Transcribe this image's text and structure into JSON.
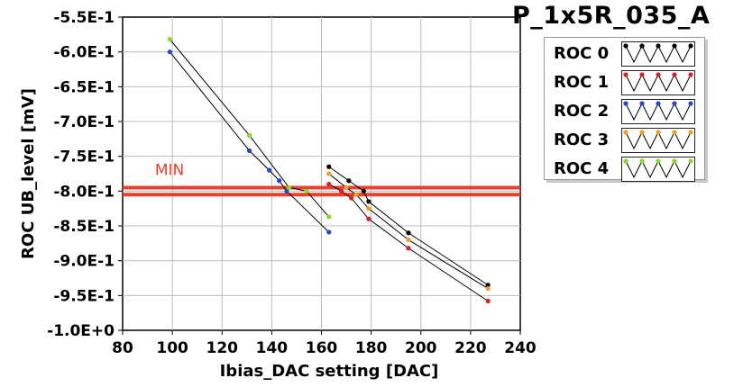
{
  "plot": {
    "title": "P_1x5R_035_A"
  },
  "chart_data": {
    "type": "line",
    "xlabel": "Ibias_DAC setting [DAC]",
    "ylabel": "ROC UB_level [mV]",
    "xlim": [
      80,
      240
    ],
    "ylim": [
      -1.0,
      -0.55
    ],
    "xticks": [
      80,
      100,
      120,
      140,
      160,
      180,
      200,
      220,
      240
    ],
    "xtick_labels": [
      "80",
      "100",
      "120",
      "140",
      "160",
      "180",
      "200",
      "220",
      "240"
    ],
    "yticks": [
      -0.55,
      -0.6,
      -0.65,
      -0.7,
      -0.75,
      -0.8,
      -0.85,
      -0.9,
      -0.95,
      -1.0
    ],
    "ytick_labels": [
      "-5.5E-1",
      "-6.0E-1",
      "-6.5E-1",
      "-7.0E-1",
      "-7.5E-1",
      "-8.0E-1",
      "-8.5E-1",
      "-9.0E-1",
      "-9.5E-1",
      "-1.0E+0"
    ],
    "grid": true,
    "legend_position": "top-right",
    "threshold": {
      "label": "MIN",
      "values": [
        -0.795,
        -0.805
      ],
      "color": "#e8402c"
    },
    "series": [
      {
        "name": "ROC 0",
        "color": "#000000",
        "x": [
          163,
          171,
          177,
          179,
          195,
          227
        ],
        "y": [
          -0.765,
          -0.785,
          -0.8,
          -0.815,
          -0.86,
          -0.935
        ]
      },
      {
        "name": "ROC 1",
        "color": "#e02020",
        "x": [
          163,
          168,
          172,
          179,
          195,
          227
        ],
        "y": [
          -0.79,
          -0.8,
          -0.81,
          -0.84,
          -0.882,
          -0.958
        ]
      },
      {
        "name": "ROC 2",
        "color": "#1f49c8",
        "x": [
          99,
          131,
          139,
          143,
          146,
          163
        ],
        "y": [
          -0.6,
          -0.742,
          -0.77,
          -0.785,
          -0.8,
          -0.859
        ]
      },
      {
        "name": "ROC 3",
        "color": "#f0a020",
        "x": [
          163,
          170,
          174,
          179,
          195,
          227
        ],
        "y": [
          -0.775,
          -0.795,
          -0.805,
          -0.825,
          -0.87,
          -0.94
        ]
      },
      {
        "name": "ROC 4",
        "color": "#80e020",
        "x": [
          99,
          131,
          147,
          154,
          163
        ],
        "y": [
          -0.582,
          -0.72,
          -0.795,
          -0.8,
          -0.837
        ]
      }
    ]
  }
}
